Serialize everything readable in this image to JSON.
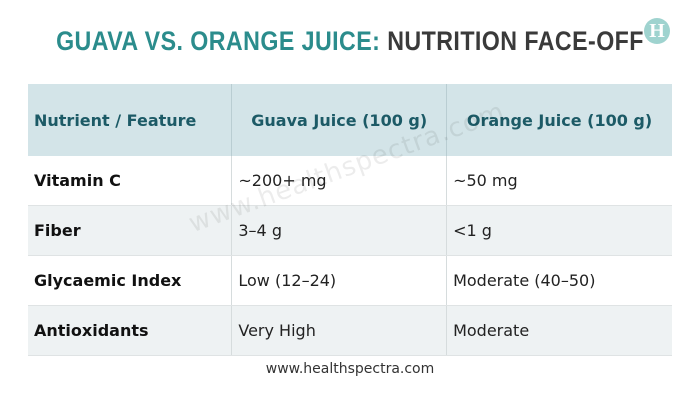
{
  "header": {
    "title_highlight": "GUAVA VS. ORANGE JUICE:",
    "title_rest": "NUTRITION FACE-OFF",
    "logo": "H"
  },
  "table": {
    "columns": [
      "Nutrient / Feature",
      "Guava Juice (100 g)",
      "Orange Juice (100 g)"
    ],
    "rows": [
      [
        "Vitamin C",
        "~200+ mg",
        "~50 mg"
      ],
      [
        "Fiber",
        "3–4 g",
        "<1 g"
      ],
      [
        "Glycaemic Index",
        "Low (12–24)",
        "Moderate (40–50)"
      ],
      [
        "Antioxidants",
        "Very High",
        "Moderate"
      ]
    ]
  },
  "watermark": "www.healthspectra.com",
  "footer": "www.healthspectra.com"
}
